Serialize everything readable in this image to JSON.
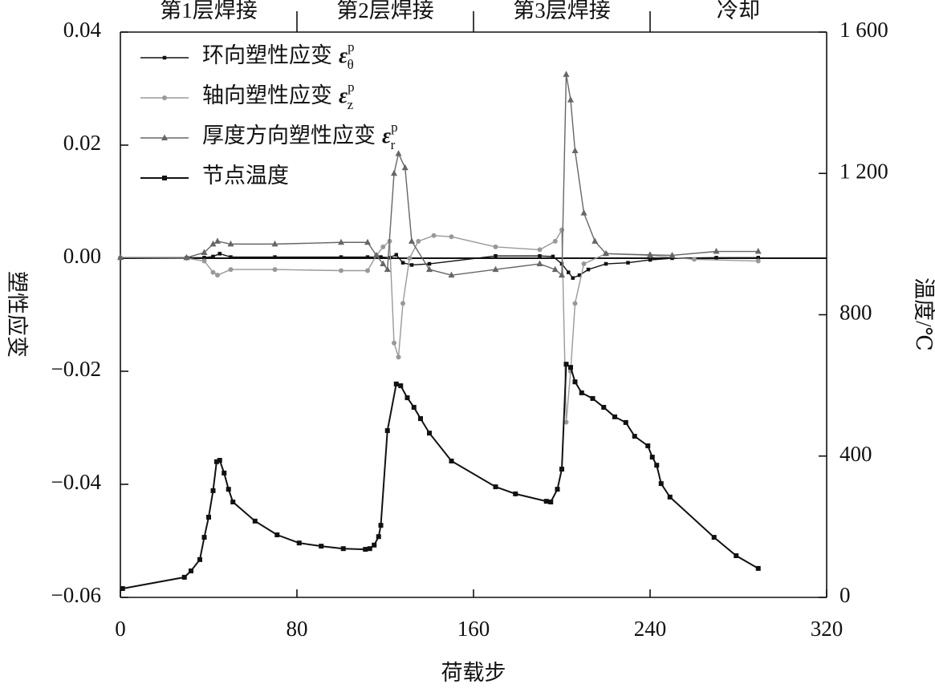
{
  "chart_data": {
    "type": "line",
    "x_label": "荷载步",
    "y_label": "塑性应变",
    "y2_label": "温度/℃",
    "xlim": [
      0,
      320
    ],
    "xticks": [
      0,
      80,
      160,
      240,
      320
    ],
    "ylim": [
      -0.06,
      0.04
    ],
    "yticks": [
      {
        "value": -0.06,
        "label": "−0.06"
      },
      {
        "value": -0.04,
        "label": "−0.04"
      },
      {
        "value": -0.02,
        "label": "−0.02"
      },
      {
        "value": 0,
        "label": "0.00"
      },
      {
        "value": 0.02,
        "label": "0.02"
      },
      {
        "value": 0.04,
        "label": "0.04"
      }
    ],
    "y2lim": [
      0,
      1600
    ],
    "y2ticks": [
      0,
      400,
      800,
      {
        "value": 1200,
        "label": "1 200"
      },
      {
        "value": 1600,
        "label": "1 600"
      }
    ],
    "phases": [
      {
        "label": "第1层焊接",
        "xrange": [
          0,
          80
        ]
      },
      {
        "label": "第2层焊接",
        "xrange": [
          80,
          160
        ]
      },
      {
        "label": "第3层焊接",
        "xrange": [
          160,
          240
        ]
      },
      {
        "label": "冷却",
        "xrange": [
          240,
          320
        ]
      }
    ],
    "legend": "upper left",
    "series": [
      {
        "name": "环向塑性应变",
        "symbol": {
          "base": "ε",
          "sub": "θ",
          "sup": "p"
        },
        "color": "#111111",
        "marker": "square-small",
        "x": [
          0,
          30,
          38,
          42,
          45,
          50,
          70,
          100,
          112,
          118,
          122,
          125,
          128,
          132,
          140,
          170,
          190,
          196,
          200,
          203,
          205,
          208,
          212,
          220,
          230,
          240,
          250,
          270,
          289
        ],
        "values": [
          0.0001,
          0.0001,
          0.0001,
          0.0003,
          0.0008,
          0.0002,
          0.0002,
          0.0002,
          0.0002,
          0.0002,
          0.0001,
          0.0006,
          -0.0008,
          -0.0012,
          -0.001,
          0.0004,
          0.0004,
          0.0003,
          -0.001,
          -0.0025,
          -0.0035,
          -0.003,
          -0.002,
          -0.001,
          -0.0008,
          -0.0003,
          0,
          0.0001,
          0.0001
        ]
      },
      {
        "name": "轴向塑性应变",
        "symbol": {
          "base": "ε",
          "sub": "z",
          "sup": "p"
        },
        "color": "#999999",
        "marker": "circle",
        "x": [
          0,
          30,
          38,
          42,
          44,
          50,
          70,
          100,
          112,
          116,
          119,
          122,
          124,
          126,
          128,
          131,
          135,
          142,
          150,
          170,
          190,
          197,
          200,
          202,
          204,
          206,
          210,
          220,
          240,
          260,
          289
        ],
        "values": [
          0.0001,
          0,
          -0.0005,
          -0.0025,
          -0.003,
          -0.002,
          -0.002,
          -0.0022,
          -0.0022,
          0.0005,
          0.002,
          0.003,
          -0.015,
          -0.0175,
          -0.008,
          0,
          0.003,
          0.004,
          0.0038,
          0.002,
          0.0015,
          0.003,
          0.005,
          -0.029,
          -0.02,
          -0.008,
          -0.001,
          0.0008,
          0.0005,
          -0.0002,
          -0.0005
        ]
      },
      {
        "name": "厚度方向塑性应变",
        "symbol": {
          "base": "ε",
          "sub": "r",
          "sup": "p"
        },
        "color": "#666666",
        "marker": "triangle",
        "x": [
          0,
          30,
          38,
          42,
          44,
          50,
          70,
          100,
          112,
          116,
          119,
          121,
          124,
          126,
          129,
          132,
          140,
          150,
          170,
          190,
          197,
          200,
          202,
          204,
          206,
          210,
          215,
          220,
          240,
          250,
          270,
          289
        ],
        "values": [
          0.0001,
          0.0001,
          0.001,
          0.0025,
          0.003,
          0.0025,
          0.0025,
          0.0028,
          0.0028,
          0.0005,
          -0.001,
          -0.002,
          0.015,
          0.0185,
          0.016,
          0.003,
          -0.002,
          -0.003,
          -0.002,
          -0.001,
          -0.002,
          -0.003,
          0.0325,
          0.028,
          0.019,
          0.008,
          0.003,
          0.0008,
          0.0006,
          0.0005,
          0.0012,
          0.0012
        ]
      },
      {
        "name": "节点温度",
        "color": "#111111",
        "marker": "square",
        "axis": "y2",
        "x": [
          1,
          29,
          32,
          36,
          38,
          40,
          42,
          43.6,
          45,
          47,
          49,
          51,
          61,
          71,
          81,
          91,
          101,
          111,
          113,
          115,
          117,
          118,
          121,
          125,
          127,
          130,
          133,
          136,
          140,
          150,
          170,
          179,
          193,
          195,
          198,
          200,
          202,
          204,
          206,
          209,
          214,
          219,
          224,
          229,
          233,
          239,
          241,
          243,
          245,
          249,
          269,
          279,
          289
        ],
        "values": [
          25,
          57,
          75,
          107,
          170,
          227,
          302,
          384,
          388,
          352,
          306,
          270,
          216,
          177,
          154,
          145,
          138,
          136,
          138,
          148,
          172,
          204,
          472,
          604,
          599,
          565,
          538,
          506,
          465,
          386,
          313,
          293,
          272,
          270,
          306,
          363,
          660,
          651,
          610,
          579,
          563,
          538,
          511,
          495,
          456,
          429,
          397,
          374,
          322,
          284,
          170,
          118,
          82
        ]
      }
    ]
  }
}
